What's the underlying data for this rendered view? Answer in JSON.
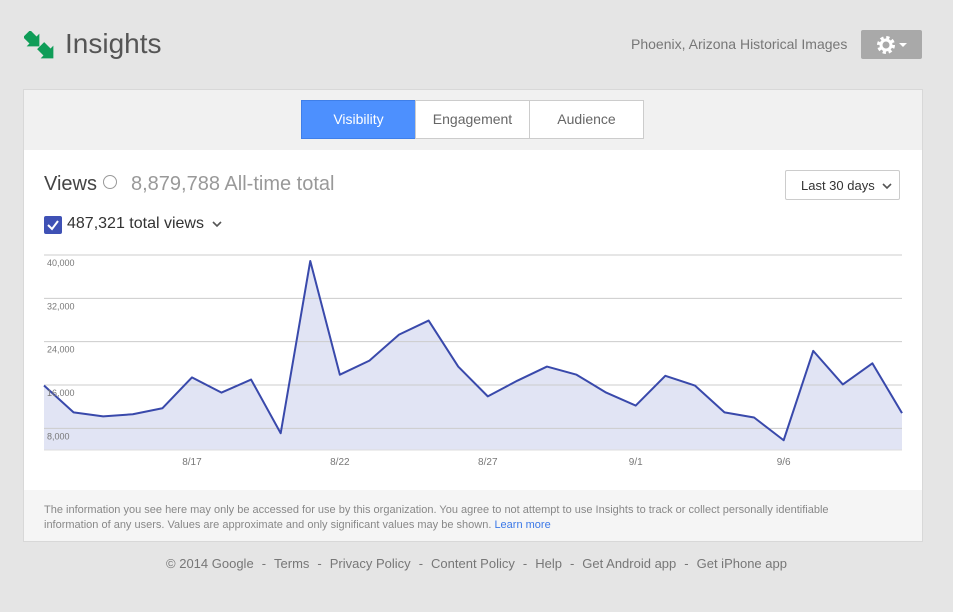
{
  "header": {
    "title": "Insights",
    "account": "Phoenix, Arizona Historical Images"
  },
  "tabs": [
    "Visibility",
    "Engagement",
    "Audience"
  ],
  "views": {
    "label": "Views",
    "total": "8,879,788 All-time total",
    "range": "Last 30 days"
  },
  "chart_data": {
    "type": "line",
    "categories": [
      null,
      null,
      null,
      null,
      null,
      "8/17",
      null,
      null,
      null,
      null,
      "8/22",
      null,
      null,
      null,
      null,
      "8/27",
      null,
      null,
      null,
      null,
      "9/1",
      null,
      null,
      null,
      null,
      "9/6",
      null,
      null,
      null,
      null
    ],
    "series": [
      {
        "name": "487,321 total views",
        "color": "#3949ab",
        "values": [
          15900,
          10950,
          10200,
          10600,
          11700,
          17400,
          14600,
          17000,
          7100,
          38900,
          17900,
          20500,
          25300,
          27900,
          19400,
          13900,
          16800,
          19400,
          17900,
          14600,
          12200,
          17700,
          15900,
          10950,
          10000,
          5800,
          22300,
          16100,
          20000,
          10800
        ]
      }
    ],
    "ylim": [
      4000,
      40000
    ],
    "yticks": [
      {
        "value": 8000,
        "label": "8,000"
      },
      {
        "value": 16000,
        "label": "16,000"
      },
      {
        "value": 24000,
        "label": "24,000"
      },
      {
        "value": 32000,
        "label": "32,000"
      },
      {
        "value": 40000,
        "label": "40,000"
      }
    ],
    "grid": true,
    "area": true
  },
  "note": {
    "text": "The information you see here may only be accessed for use by this organization. You agree to not attempt to use Insights to track or collect personally identifiable information of any users. Values are approximate and only significant values may be shown.",
    "link": "Learn more"
  },
  "footer": {
    "items": [
      "© 2014 Google",
      "Terms",
      "Privacy Policy",
      "Content Policy",
      "Help",
      "Get Android app",
      "Get iPhone app"
    ],
    "separator": "-"
  }
}
